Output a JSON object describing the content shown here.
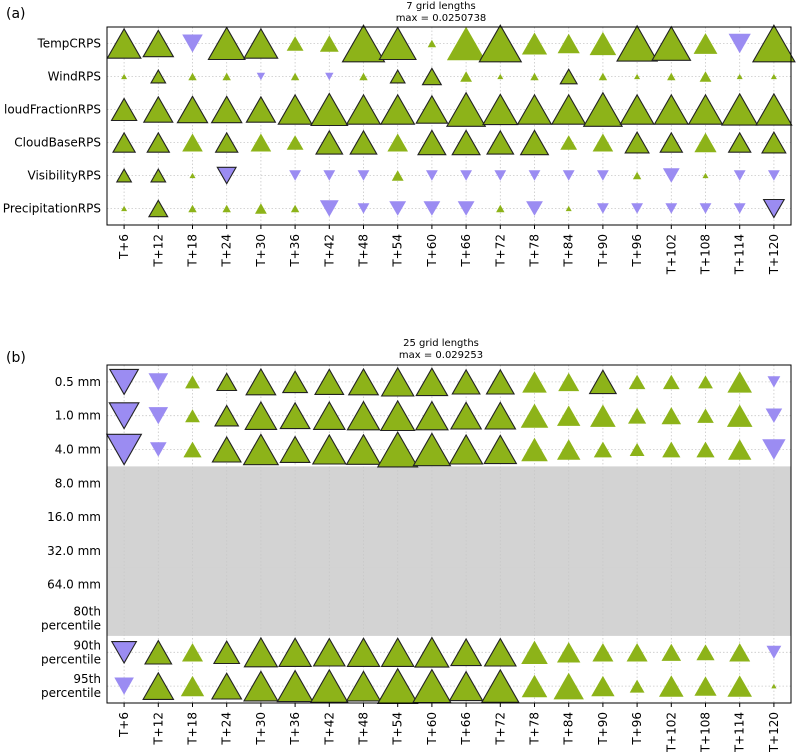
{
  "colors": {
    "positive": "#8db319",
    "negative": "#9b8cf2",
    "missing": "#d3d3d3",
    "grid": "#c8c8c8",
    "edge": "#222222"
  },
  "chart_data": [
    {
      "type": "heatmap",
      "panel_label": "(a)",
      "title": "7 grid lengths",
      "subtitle": "max = 0.0250738",
      "categories": [
        "T+6",
        "T+12",
        "T+18",
        "T+24",
        "T+30",
        "T+36",
        "T+42",
        "T+48",
        "T+54",
        "T+60",
        "T+66",
        "T+72",
        "T+78",
        "T+84",
        "T+90",
        "T+96",
        "T+102",
        "T+108",
        "T+114",
        "T+120"
      ],
      "rows": [
        "TempCRPS",
        "WindRPS",
        "CloudFractionRPS",
        "CloudBaseRPS",
        "VisibilityRPS",
        "PrecipitationRPS"
      ],
      "row_label_display": [
        "TempCRPS",
        "WindRPS",
        "loudFractionRPS",
        "CloudBaseRPS",
        "VisibilityRPS",
        "PrecipitationRPS"
      ],
      "markers": "triangle size proportional to |value|; green upward = positive, purple downward = negative; outlined = significant",
      "series": [
        {
          "name": "TempCRPS",
          "values": [
            0.016,
            0.013,
            -0.006,
            0.019,
            0.016,
            0.004,
            0.005,
            0.025,
            0.019,
            0.001,
            0.021,
            0.025,
            0.009,
            0.007,
            0.01,
            0.023,
            0.021,
            0.008,
            -0.007,
            0.025
          ],
          "significant": [
            true,
            true,
            false,
            true,
            true,
            false,
            false,
            true,
            true,
            false,
            false,
            true,
            false,
            false,
            false,
            true,
            true,
            false,
            false,
            true
          ]
        },
        {
          "name": "WindRPS",
          "values": [
            0.0005,
            0.003,
            0.001,
            0.001,
            -0.001,
            0.001,
            -0.001,
            0.001,
            0.003,
            0.005,
            0.002,
            0.0005,
            0.001,
            0.004,
            0.001,
            0.0005,
            0.001,
            0.002,
            0.0005,
            0.0005
          ],
          "significant": [
            false,
            true,
            false,
            false,
            false,
            false,
            false,
            false,
            true,
            true,
            false,
            false,
            false,
            true,
            false,
            false,
            false,
            false,
            false,
            false
          ]
        },
        {
          "name": "CloudFractionRPS",
          "values": [
            0.009,
            0.012,
            0.013,
            0.013,
            0.012,
            0.016,
            0.019,
            0.016,
            0.016,
            0.014,
            0.021,
            0.017,
            0.016,
            0.016,
            0.021,
            0.016,
            0.016,
            0.016,
            0.018,
            0.018
          ],
          "significant": [
            true,
            true,
            true,
            true,
            true,
            true,
            true,
            true,
            true,
            true,
            true,
            true,
            true,
            true,
            true,
            true,
            true,
            true,
            true,
            true
          ]
        },
        {
          "name": "CloudBaseRPS",
          "values": [
            0.007,
            0.007,
            0.006,
            0.007,
            0.006,
            0.004,
            0.01,
            0.01,
            0.006,
            0.011,
            0.011,
            0.01,
            0.011,
            0.004,
            0.006,
            0.008,
            0.007,
            0.007,
            0.007,
            0.008
          ],
          "significant": [
            true,
            true,
            false,
            true,
            false,
            false,
            true,
            true,
            false,
            true,
            true,
            true,
            true,
            false,
            false,
            true,
            true,
            false,
            true,
            true
          ]
        },
        {
          "name": "VisibilityRPS",
          "values": [
            0.003,
            0.003,
            0.0005,
            -0.005,
            0.0,
            -0.002,
            -0.002,
            -0.002,
            0.002,
            -0.002,
            -0.002,
            -0.002,
            -0.002,
            -0.002,
            -0.002,
            0.001,
            -0.004,
            0.0005,
            -0.002,
            -0.002
          ],
          "significant": [
            true,
            true,
            false,
            true,
            false,
            false,
            false,
            false,
            false,
            false,
            false,
            false,
            false,
            false,
            false,
            false,
            false,
            false,
            false,
            false
          ]
        },
        {
          "name": "PrecipitationRPS",
          "values": [
            0.0005,
            0.005,
            0.001,
            0.001,
            0.002,
            0.001,
            -0.005,
            -0.002,
            -0.004,
            -0.004,
            -0.004,
            0.001,
            -0.004,
            0.0005,
            -0.002,
            -0.002,
            -0.002,
            -0.002,
            -0.002,
            -0.006
          ],
          "significant": [
            false,
            true,
            false,
            false,
            false,
            false,
            false,
            false,
            false,
            false,
            false,
            false,
            false,
            false,
            false,
            false,
            false,
            false,
            false,
            true
          ]
        }
      ],
      "grid": true
    },
    {
      "type": "heatmap",
      "panel_label": "(b)",
      "title": "25 grid lengths",
      "subtitle": "max = 0.029253",
      "categories": [
        "T+6",
        "T+12",
        "T+18",
        "T+24",
        "T+30",
        "T+36",
        "T+42",
        "T+48",
        "T+54",
        "T+60",
        "T+66",
        "T+72",
        "T+78",
        "T+84",
        "T+90",
        "T+96",
        "T+102",
        "T+108",
        "T+114",
        "T+120"
      ],
      "rows": [
        "0.5 mm",
        "1.0 mm",
        "4.0 mm",
        "8.0 mm",
        "16.0 mm",
        "32.0 mm",
        "64.0 mm",
        "80th percentile",
        "90th percentile",
        "95th percentile"
      ],
      "row_label_lines": [
        [
          "0.5 mm"
        ],
        [
          "1.0 mm"
        ],
        [
          "4.0 mm"
        ],
        [
          "8.0 mm"
        ],
        [
          "16.0 mm"
        ],
        [
          "32.0 mm"
        ],
        [
          "64.0 mm"
        ],
        [
          "80th",
          "percentile"
        ],
        [
          "90th",
          "percentile"
        ],
        [
          "95th",
          "percentile"
        ]
      ],
      "markers": "triangle size proportional to |value|; green upward = positive, purple downward = negative; outlined = significant; grey rows = no data",
      "series": [
        {
          "name": "0.5 mm",
          "values": [
            -0.015,
            -0.007,
            0.004,
            0.007,
            0.016,
            0.011,
            0.015,
            0.016,
            0.019,
            0.018,
            0.014,
            0.014,
            0.011,
            0.008,
            0.013,
            0.005,
            0.005,
            0.004,
            0.011,
            -0.003
          ],
          "significant": [
            true,
            false,
            false,
            true,
            true,
            true,
            true,
            true,
            true,
            true,
            true,
            true,
            false,
            false,
            true,
            false,
            false,
            false,
            false,
            false
          ]
        },
        {
          "name": "1.0 mm",
          "values": [
            -0.016,
            -0.007,
            0.004,
            0.01,
            0.018,
            0.016,
            0.018,
            0.019,
            0.021,
            0.019,
            0.017,
            0.017,
            0.014,
            0.01,
            0.012,
            0.006,
            0.007,
            0.005,
            0.012,
            -0.005
          ],
          "significant": [
            true,
            false,
            false,
            true,
            true,
            true,
            true,
            true,
            true,
            true,
            true,
            true,
            false,
            false,
            false,
            false,
            false,
            false,
            false,
            false
          ]
        },
        {
          "name": "4.0 mm",
          "values": [
            -0.022,
            -0.005,
            0.006,
            0.015,
            0.022,
            0.016,
            0.02,
            0.021,
            0.029,
            0.025,
            0.02,
            0.019,
            0.013,
            0.01,
            0.006,
            0.004,
            0.006,
            0.006,
            0.01,
            -0.01
          ],
          "significant": [
            true,
            false,
            false,
            true,
            true,
            true,
            true,
            true,
            true,
            true,
            true,
            true,
            false,
            false,
            false,
            false,
            false,
            false,
            false,
            false
          ]
        },
        {
          "name": "8.0 mm",
          "values": null
        },
        {
          "name": "16.0 mm",
          "values": null
        },
        {
          "name": "32.0 mm",
          "values": null
        },
        {
          "name": "64.0 mm",
          "values": null
        },
        {
          "name": "80th percentile",
          "values": null
        },
        {
          "name": "90th percentile",
          "values": [
            -0.011,
            0.013,
            0.008,
            0.012,
            0.02,
            0.019,
            0.018,
            0.019,
            0.019,
            0.021,
            0.017,
            0.018,
            0.013,
            0.01,
            0.008,
            0.008,
            0.007,
            0.006,
            0.008,
            -0.004
          ],
          "significant": [
            true,
            true,
            false,
            true,
            true,
            true,
            true,
            true,
            true,
            true,
            true,
            true,
            false,
            false,
            false,
            false,
            false,
            false,
            false,
            false
          ]
        },
        {
          "name": "95th percentile",
          "values": [
            -0.007,
            0.017,
            0.01,
            0.016,
            0.021,
            0.023,
            0.025,
            0.021,
            0.029,
            0.026,
            0.02,
            0.025,
            0.012,
            0.017,
            0.01,
            0.004,
            0.011,
            0.009,
            0.011,
            0.0005
          ],
          "significant": [
            false,
            true,
            false,
            true,
            true,
            true,
            true,
            true,
            true,
            true,
            true,
            true,
            false,
            false,
            false,
            false,
            false,
            false,
            false,
            false
          ]
        }
      ],
      "grid": true
    }
  ]
}
